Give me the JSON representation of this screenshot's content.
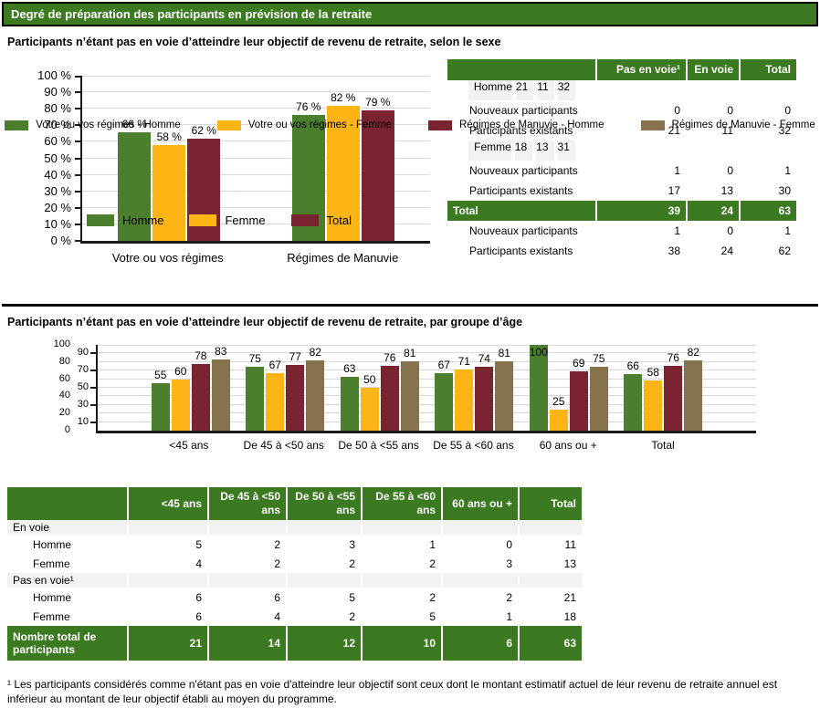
{
  "header": {
    "title": "Degré de préparation des participants en prévision de la retraite"
  },
  "colors": {
    "brand_green": "#3c7a21",
    "chart_green": "#4b7e2d",
    "chart_yellow": "#fdb515",
    "chart_maroon": "#7a2431",
    "chart_tan": "#86734e",
    "row_gray": "#f2f2f2",
    "gridline": "#d9d9d9"
  },
  "section_sexe": {
    "title": "Participants n’étant pas en voie d’atteindre leur objectif de revenu de retraite, selon le sexe",
    "table": {
      "columns": [
        "",
        "Pas en voie¹",
        "En voie",
        "Total"
      ],
      "rows": [
        {
          "label": "Homme",
          "values": [
            21,
            11,
            32
          ],
          "style": "group"
        },
        {
          "label": "Nouveaux participants",
          "values": [
            0,
            0,
            0
          ],
          "style": "sub"
        },
        {
          "label": "Participants existants",
          "values": [
            21,
            11,
            32
          ],
          "style": "sub"
        },
        {
          "label": "Femme",
          "values": [
            18,
            13,
            31
          ],
          "style": "group"
        },
        {
          "label": "Nouveaux participants",
          "values": [
            1,
            0,
            1
          ],
          "style": "sub"
        },
        {
          "label": "Participants existants",
          "values": [
            17,
            13,
            30
          ],
          "style": "sub"
        },
        {
          "label": "Total",
          "values": [
            39,
            24,
            63
          ],
          "style": "total"
        },
        {
          "label": "Nouveaux participants",
          "values": [
            1,
            0,
            1
          ],
          "style": "sub"
        },
        {
          "label": "Participants existants",
          "values": [
            38,
            24,
            62
          ],
          "style": "sub"
        }
      ]
    }
  },
  "section_age": {
    "title": "Participants n’étant pas en voie d’atteindre leur objectif de revenu de retraite, par groupe d’âge",
    "table": {
      "columns": [
        "",
        "<45 ans",
        "De 45 à <50 ans",
        "De 50 à <55 ans",
        "De 55 à <60 ans",
        "60 ans ou +",
        "Total"
      ],
      "rows": [
        {
          "label": "En voie",
          "values": [],
          "style": "section"
        },
        {
          "label": "Homme",
          "values": [
            5,
            2,
            3,
            1,
            0,
            11
          ],
          "style": "sub"
        },
        {
          "label": "Femme",
          "values": [
            4,
            2,
            2,
            2,
            3,
            13
          ],
          "style": "sub"
        },
        {
          "label": "Pas en voie¹",
          "values": [],
          "style": "section"
        },
        {
          "label": "Homme",
          "values": [
            6,
            6,
            5,
            2,
            2,
            21
          ],
          "style": "sub"
        },
        {
          "label": "Femme",
          "values": [
            6,
            4,
            2,
            5,
            1,
            18
          ],
          "style": "sub"
        },
        {
          "label": "Nombre total de participants",
          "values": [
            21,
            14,
            12,
            10,
            6,
            63
          ],
          "style": "total"
        }
      ]
    }
  },
  "footnote": "¹ Les participants considérés comme n'étant pas en voie d'atteindre leur objectif sont ceux dont le montant estimatif actuel de leur revenu de retraite annuel est inférieur au montant de leur objectif établi au moyen du programme.",
  "chart_data": [
    {
      "id": "chart-sexe",
      "type": "bar",
      "title": "Participants n’étant pas en voie d’atteindre leur objectif de revenu de retraite, selon le sexe",
      "categories": [
        "Votre ou vos régimes",
        "Régimes de Manuvie"
      ],
      "series": [
        {
          "name": "Homme",
          "color": "#4b7e2d",
          "values": [
            66,
            76
          ]
        },
        {
          "name": "Femme",
          "color": "#fdb515",
          "values": [
            58,
            82
          ]
        },
        {
          "name": "Total",
          "color": "#7a2431",
          "values": [
            62,
            79
          ]
        }
      ],
      "ylim": [
        0,
        100
      ],
      "y_ticks": [
        0,
        10,
        20,
        30,
        40,
        50,
        60,
        70,
        80,
        90,
        100
      ],
      "y_suffix": " %",
      "value_suffix": " %",
      "staggered_y": false,
      "grid": true,
      "legend_position": "bottom"
    },
    {
      "id": "chart-age",
      "type": "bar",
      "title": "Participants n’étant pas en voie d’atteindre leur objectif de revenu de retraite, par groupe d’âge",
      "categories": [
        "<45 ans",
        "De 45 à <50 ans",
        "De 50 à <55 ans",
        "De 55 à <60 ans",
        "60 ans ou +",
        "Total"
      ],
      "series": [
        {
          "name": "Votre ou vos régimes - Homme",
          "color": "#4b7e2d",
          "values": [
            55,
            75,
            63,
            67,
            100,
            66
          ]
        },
        {
          "name": "Votre ou vos régimes - Femme",
          "color": "#fdb515",
          "values": [
            60,
            67,
            50,
            71,
            25,
            58
          ]
        },
        {
          "name": "Régimes de Manuvie - Homme",
          "color": "#7a2431",
          "values": [
            78,
            77,
            76,
            74,
            69,
            76
          ]
        },
        {
          "name": "Régimes de Manuvie - Femme",
          "color": "#86734e",
          "values": [
            83,
            82,
            81,
            81,
            75,
            82
          ]
        }
      ],
      "ylim": [
        0,
        100
      ],
      "y_ticks": [
        0,
        10,
        20,
        30,
        40,
        50,
        60,
        70,
        80,
        90,
        100
      ],
      "y_suffix": "",
      "value_suffix": "",
      "staggered_y": true,
      "grid": true,
      "legend_position": "bottom"
    }
  ]
}
